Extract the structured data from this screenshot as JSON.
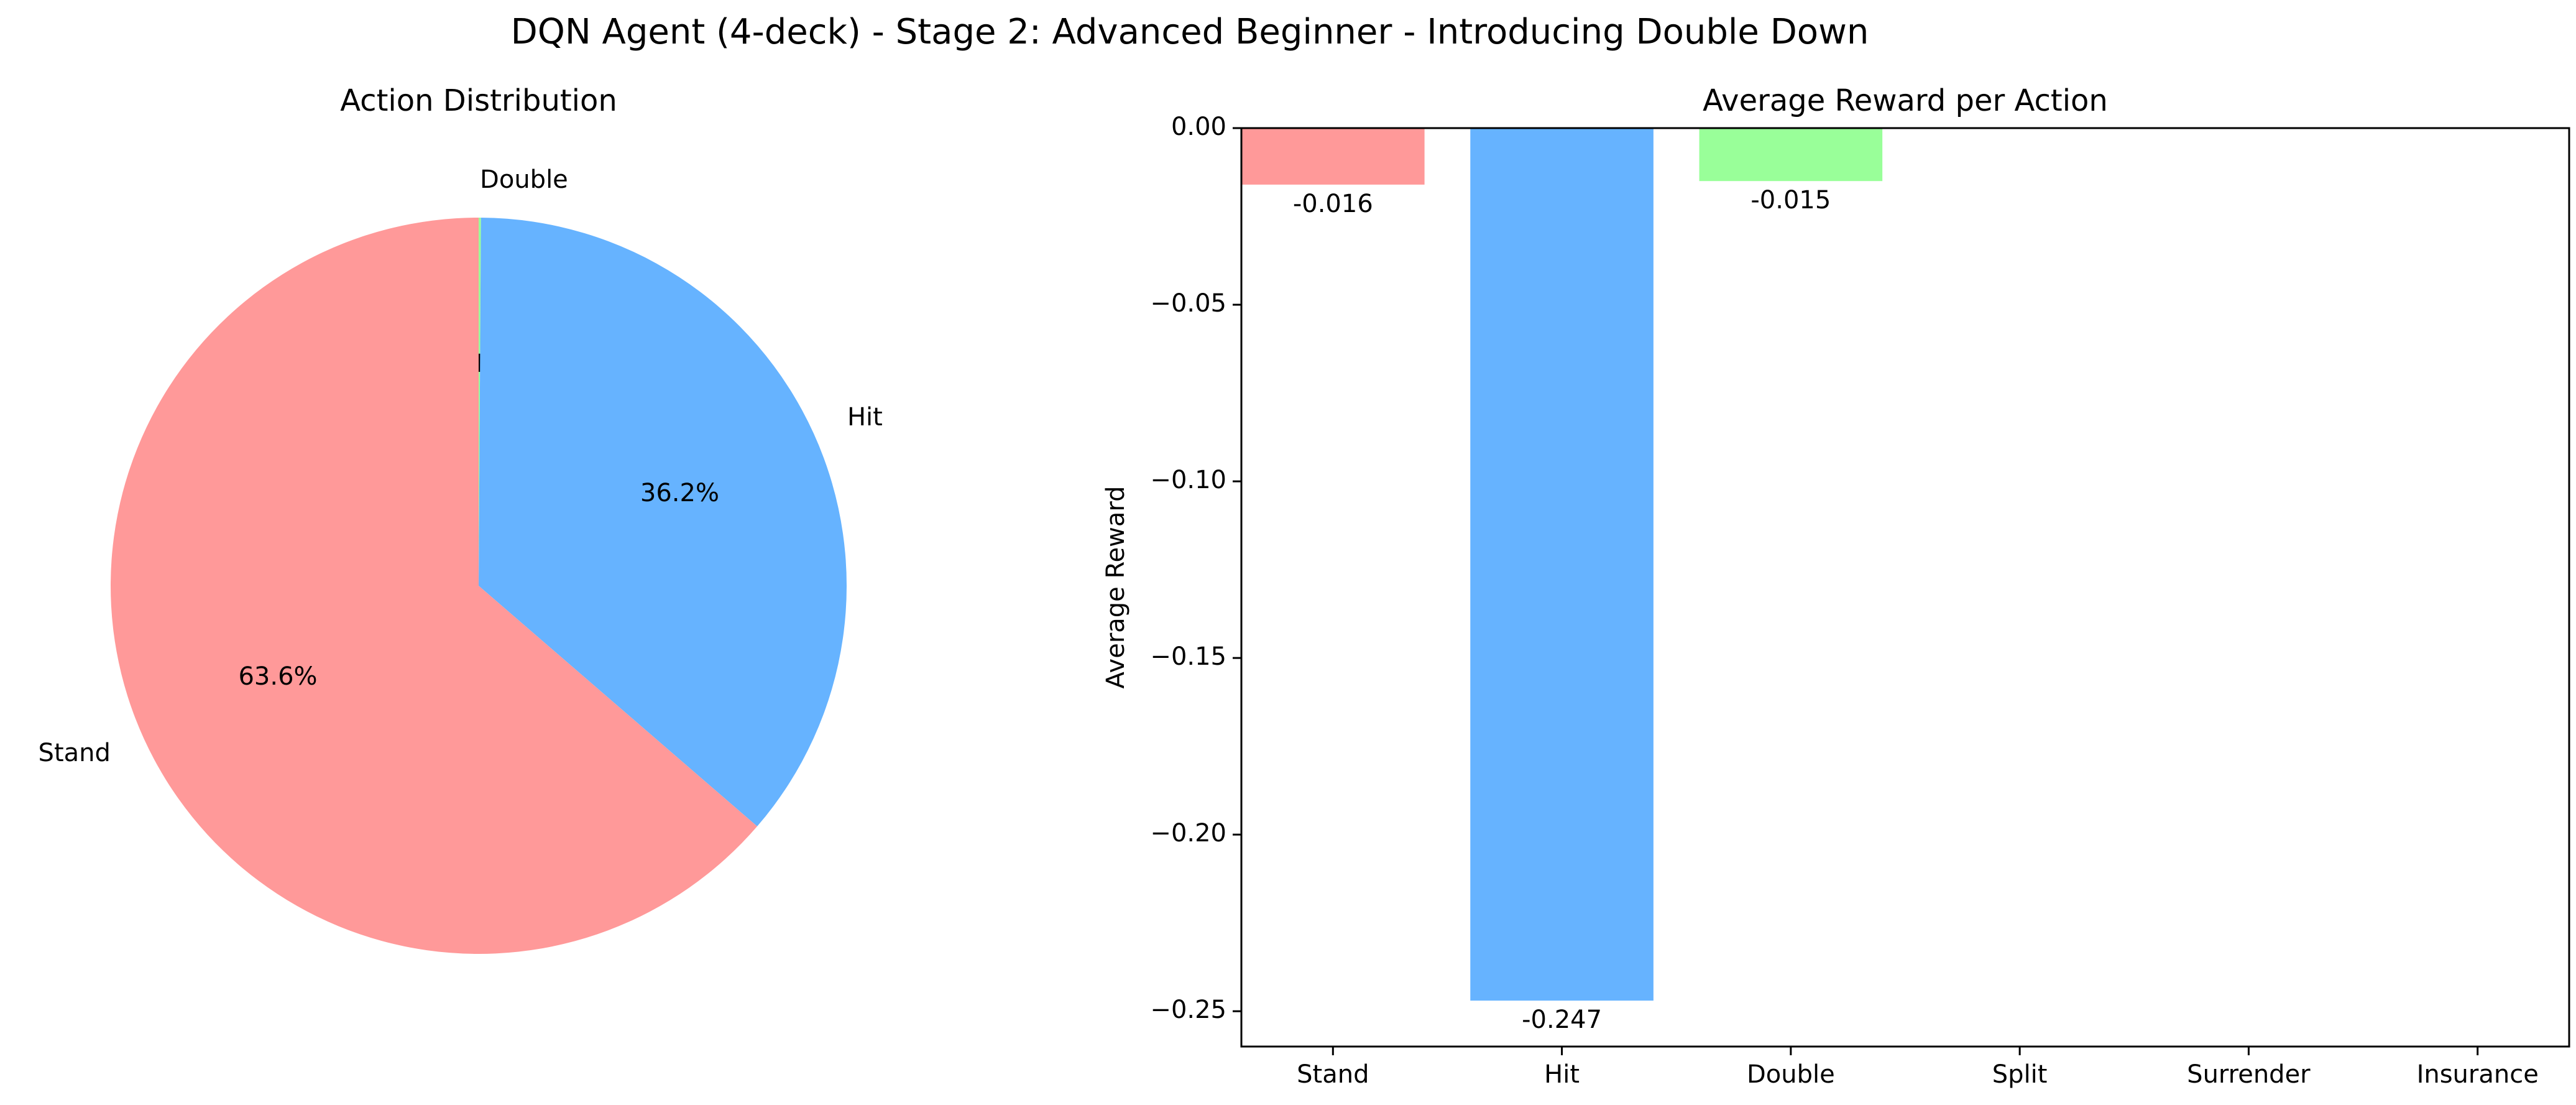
{
  "figure": {
    "title": "DQN Agent (4-deck) - Stage 2: Advanced Beginner - Introducing Double Down"
  },
  "chart_data": [
    {
      "type": "pie",
      "title": "Action Distribution",
      "start_angle_deg": 90,
      "direction": "clockwise",
      "slices": [
        {
          "label": "Double",
          "value": 0.1,
          "pct_label": "0.1%",
          "color": "#99ff99"
        },
        {
          "label": "Hit",
          "value": 36.2,
          "pct_label": "36.2%",
          "color": "#66b3ff"
        },
        {
          "label": "Stand",
          "value": 63.6,
          "pct_label": "63.6%",
          "color": "#ff9999"
        }
      ]
    },
    {
      "type": "bar",
      "title": "Average Reward per Action",
      "ylabel": "Average Reward",
      "xlabel": "",
      "categories": [
        "Stand",
        "Hit",
        "Double",
        "Split",
        "Surrender",
        "Insurance"
      ],
      "values": [
        -0.016,
        -0.247,
        -0.015,
        null,
        null,
        null
      ],
      "value_labels": [
        "-0.016",
        "-0.247",
        "-0.015",
        "",
        "",
        ""
      ],
      "colors": [
        "#ff9999",
        "#66b3ff",
        "#99ff99"
      ],
      "ylim": [
        -0.26,
        0.0
      ],
      "yticks": [
        0.0,
        -0.05,
        -0.1,
        -0.15,
        -0.2,
        -0.25
      ],
      "ytick_labels": [
        "0.00",
        "−0.05",
        "−0.10",
        "−0.15",
        "−0.20",
        "−0.25"
      ],
      "grid": false,
      "legend": "none"
    }
  ]
}
